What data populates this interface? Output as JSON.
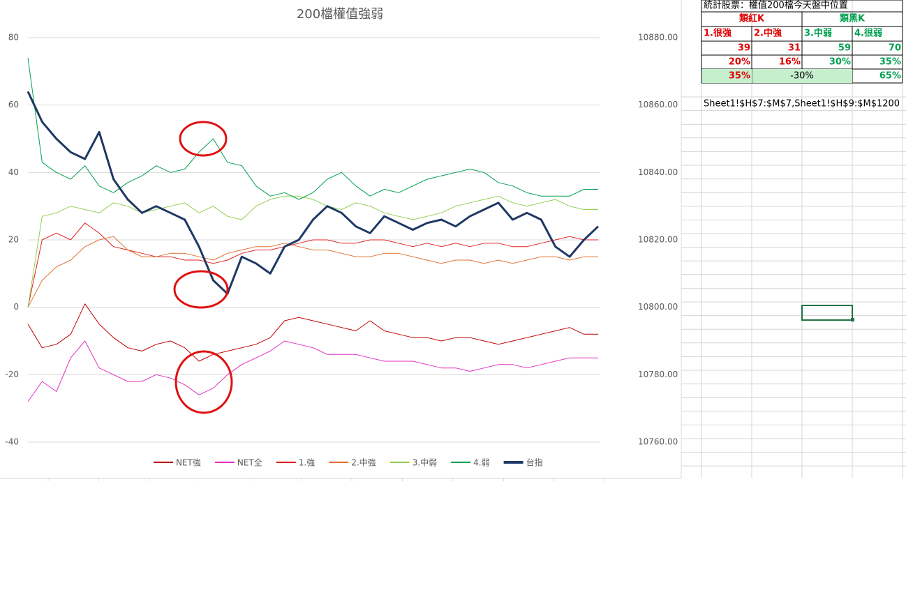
{
  "chart_data": {
    "type": "line",
    "title": "200檔權值強弱",
    "categories": [
      null,
      null,
      null,
      null,
      null,
      null,
      null,
      null,
      null,
      null,
      null,
      null,
      null,
      null,
      null,
      null,
      null,
      null,
      null,
      null,
      null,
      null,
      null,
      null,
      null,
      null,
      null,
      null,
      null,
      null,
      null,
      null,
      null,
      null,
      null,
      null,
      null,
      null,
      null,
      null,
      null
    ],
    "ylim": [
      -40,
      80
    ],
    "yticks": [
      -40,
      -20,
      0,
      20,
      40,
      60,
      80
    ],
    "y2lim": [
      10760,
      10880
    ],
    "y2ticks": [
      {
        "value": 10760,
        "label": "10760.00"
      },
      {
        "value": 10780,
        "label": "10780.00"
      },
      {
        "value": 10800,
        "label": "10800.00"
      },
      {
        "value": 10820,
        "label": "10820.00"
      },
      {
        "value": 10840,
        "label": "10840.00"
      },
      {
        "value": 10860,
        "label": "10860.00"
      },
      {
        "value": 10880,
        "label": "10880.00"
      }
    ],
    "grid": true,
    "legend": "bottom",
    "series": [
      {
        "name": "NET強",
        "color": "#c00000",
        "line_width": 1,
        "values": [
          -5,
          -12,
          -11,
          -8,
          1,
          -5,
          -9,
          -12,
          -13,
          -11,
          -10,
          -12,
          -16,
          -14,
          -13,
          -12,
          -11,
          -9,
          -4,
          -3,
          -4,
          -5,
          -6,
          -7,
          -4,
          -7,
          -8,
          -9,
          -9,
          -10,
          -9,
          -9,
          -10,
          -11,
          -10,
          -9,
          -8,
          -7,
          -6,
          -8,
          -8
        ]
      },
      {
        "name": "NET全",
        "color": "#e030c0",
        "line_width": 1,
        "values": [
          -28,
          -22,
          -25,
          -15,
          -10,
          -18,
          -20,
          -22,
          -22,
          -20,
          -21,
          -23,
          -26,
          -24,
          -20,
          -17,
          -15,
          -13,
          -10,
          -11,
          -12,
          -14,
          -14,
          -14,
          -15,
          -16,
          -16,
          -16,
          -17,
          -18,
          -18,
          -19,
          -18,
          -17,
          -17,
          -18,
          -17,
          -16,
          -15,
          -15,
          -15
        ]
      },
      {
        "name": "1.強",
        "color": "#e02020",
        "line_width": 1,
        "values": [
          0,
          20,
          22,
          20,
          25,
          22,
          18,
          17,
          16,
          15,
          15,
          14,
          14,
          13,
          14,
          16,
          17,
          17,
          18,
          19,
          20,
          20,
          19,
          19,
          20,
          20,
          19,
          18,
          19,
          18,
          19,
          18,
          19,
          19,
          18,
          18,
          19,
          20,
          21,
          20,
          20
        ]
      },
      {
        "name": "2.中強",
        "color": "#e07030",
        "line_width": 1,
        "values": [
          0,
          8,
          12,
          14,
          18,
          20,
          21,
          17,
          15,
          15,
          16,
          16,
          15,
          14,
          16,
          17,
          18,
          18,
          19,
          18,
          17,
          17,
          16,
          15,
          15,
          16,
          16,
          15,
          14,
          13,
          14,
          14,
          13,
          14,
          13,
          14,
          15,
          15,
          14,
          15,
          15
        ]
      },
      {
        "name": "3.中弱",
        "color": "#92d050",
        "line_width": 1,
        "values": [
          0,
          27,
          28,
          30,
          29,
          28,
          31,
          30,
          28,
          29,
          30,
          31,
          28,
          30,
          27,
          26,
          30,
          32,
          33,
          33,
          32,
          30,
          29,
          31,
          30,
          28,
          27,
          26,
          27,
          28,
          30,
          31,
          32,
          33,
          31,
          30,
          31,
          32,
          30,
          29,
          29
        ]
      },
      {
        "name": "4.弱",
        "color": "#00a050",
        "line_width": 1,
        "values": [
          74,
          43,
          40,
          38,
          42,
          36,
          34,
          37,
          39,
          42,
          40,
          41,
          46,
          50,
          43,
          42,
          36,
          33,
          34,
          32,
          34,
          38,
          40,
          36,
          33,
          35,
          34,
          36,
          38,
          39,
          40,
          41,
          40,
          37,
          36,
          34,
          33,
          33,
          33,
          35,
          35
        ]
      },
      {
        "name": "台指",
        "color": "#1f3864",
        "line_width": 3,
        "axis": "y2",
        "values": [
          10864,
          10855,
          10850,
          10846,
          10844,
          10852,
          10838,
          10832,
          10828,
          10830,
          10828,
          10826,
          10818,
          10808,
          10804,
          10815,
          10813,
          10810,
          10818,
          10820,
          10826,
          10830,
          10828,
          10824,
          10822,
          10827,
          10825,
          10823,
          10825,
          10826,
          10824,
          10827,
          10829,
          10831,
          10826,
          10828,
          10826,
          10818,
          10815,
          10820,
          10824
        ]
      }
    ]
  },
  "sheet": {
    "title": "統計股票：權值200檔今天盤中位置",
    "groups": [
      "類紅K",
      "類黑K"
    ],
    "headers": [
      "1.很強",
      "2.中強",
      "3.中弱",
      "4.很弱"
    ],
    "rows": [
      [
        39,
        31,
        59,
        70
      ],
      [
        "20%",
        "16%",
        "30%",
        "35%"
      ]
    ],
    "summary": [
      "35%",
      "-30%",
      "65%"
    ],
    "formula": "Sheet1!$H$7:$M$7,Sheet1!$H$9:$M$1200"
  }
}
